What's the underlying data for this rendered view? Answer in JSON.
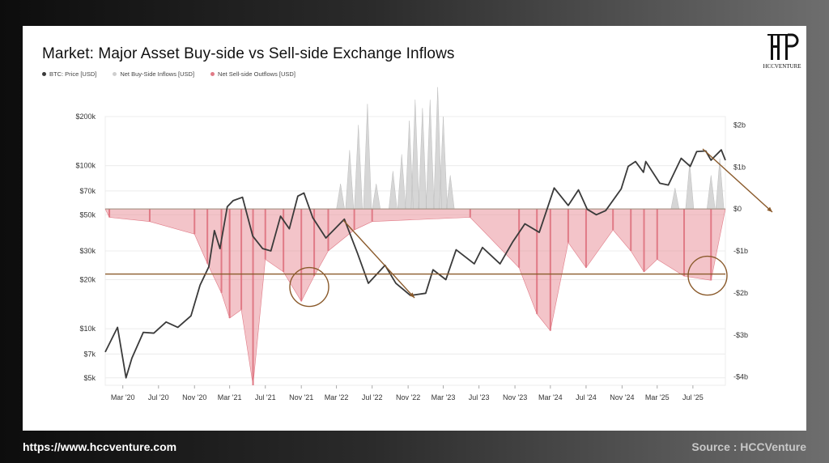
{
  "footer": {
    "url": "https://www.hccventure.com",
    "source": "Source : HCCVenture"
  },
  "logo": {
    "text": "HCCVENTURE"
  },
  "colors": {
    "price": "#3a3a3a",
    "inflow": "#cfcfcf",
    "outflow": "#e07a86",
    "outflow_fill": "#e9939d",
    "guide": "#8a5a2b"
  },
  "chart_data": {
    "type": "area",
    "title": "Market: Major Asset Buy-side vs Sell-side Exchange Inflows",
    "legend": [
      "BTC: Price [USD]",
      "Net Buy-Side Inflows [USD]",
      "Net Sell-side Outflows [USD]"
    ],
    "legend_position": "top-left",
    "x_ticks": [
      "Mar '20",
      "Jul '20",
      "Nov '20",
      "Mar '21",
      "Jul '21",
      "Nov '21",
      "Mar '22",
      "Jul '22",
      "Nov '22",
      "Mar '23",
      "Jul '23",
      "Nov '23",
      "Mar '24",
      "Jul '24",
      "Nov '24",
      "Mar '25",
      "Jul '25"
    ],
    "y_left": {
      "scale": "log",
      "range": [
        4500,
        200000
      ],
      "ticks": [
        {
          "v": 5000,
          "label": "$5k"
        },
        {
          "v": 7000,
          "label": "$7k"
        },
        {
          "v": 10000,
          "label": "$10k"
        },
        {
          "v": 20000,
          "label": "$20k"
        },
        {
          "v": 30000,
          "label": "$30k"
        },
        {
          "v": 50000,
          "label": "$50k"
        },
        {
          "v": 70000,
          "label": "$70k"
        },
        {
          "v": 100000,
          "label": "$100k"
        },
        {
          "v": 200000,
          "label": "$200k"
        }
      ]
    },
    "y_right": {
      "scale": "linear",
      "unit": "USD billions",
      "range": [
        -4.2,
        2.2
      ],
      "ticks": [
        {
          "v": 2,
          "label": "$2b"
        },
        {
          "v": 1,
          "label": "$1b"
        },
        {
          "v": 0,
          "label": "$0"
        },
        {
          "v": -1,
          "label": "-$1b"
        },
        {
          "v": -2,
          "label": "-$2b"
        },
        {
          "v": -3,
          "label": "-$3b"
        },
        {
          "v": -4,
          "label": "-$4b"
        }
      ]
    },
    "x_range": [
      "2020-01-01",
      "2025-10-20"
    ],
    "grid": true,
    "btc_price": [
      [
        "2020-01-01",
        7200
      ],
      [
        "2020-02-12",
        10200
      ],
      [
        "2020-03-12",
        5000
      ],
      [
        "2020-04-01",
        6600
      ],
      [
        "2020-05-10",
        9500
      ],
      [
        "2020-06-15",
        9400
      ],
      [
        "2020-07-27",
        11000
      ],
      [
        "2020-09-05",
        10200
      ],
      [
        "2020-10-20",
        12000
      ],
      [
        "2020-11-20",
        18500
      ],
      [
        "2020-12-20",
        24000
      ],
      [
        "2021-01-08",
        40000
      ],
      [
        "2021-01-27",
        31000
      ],
      [
        "2021-02-21",
        56000
      ],
      [
        "2021-03-13",
        61000
      ],
      [
        "2021-04-14",
        64000
      ],
      [
        "2021-05-19",
        37000
      ],
      [
        "2021-06-22",
        31000
      ],
      [
        "2021-07-20",
        30000
      ],
      [
        "2021-08-22",
        49000
      ],
      [
        "2021-09-21",
        41000
      ],
      [
        "2021-10-20",
        65000
      ],
      [
        "2021-11-10",
        68000
      ],
      [
        "2021-12-10",
        48000
      ],
      [
        "2022-01-24",
        36000
      ],
      [
        "2022-03-28",
        47000
      ],
      [
        "2022-05-12",
        29000
      ],
      [
        "2022-06-18",
        19000
      ],
      [
        "2022-08-14",
        24500
      ],
      [
        "2022-09-20",
        19000
      ],
      [
        "2022-11-09",
        16000
      ],
      [
        "2022-12-31",
        16500
      ],
      [
        "2023-01-25",
        23000
      ],
      [
        "2023-03-10",
        20000
      ],
      [
        "2023-04-14",
        30500
      ],
      [
        "2023-06-15",
        25000
      ],
      [
        "2023-07-13",
        31500
      ],
      [
        "2023-09-11",
        25000
      ],
      [
        "2023-10-24",
        34000
      ],
      [
        "2023-12-05",
        44000
      ],
      [
        "2024-01-23",
        39000
      ],
      [
        "2024-03-14",
        73000
      ],
      [
        "2024-05-01",
        57000
      ],
      [
        "2024-06-05",
        71000
      ],
      [
        "2024-07-05",
        54000
      ],
      [
        "2024-08-05",
        50000
      ],
      [
        "2024-09-06",
        53000
      ],
      [
        "2024-10-29",
        72000
      ],
      [
        "2024-11-22",
        99000
      ],
      [
        "2024-12-17",
        106000
      ],
      [
        "2025-01-13",
        91000
      ],
      [
        "2025-01-21",
        106000
      ],
      [
        "2025-03-10",
        78000
      ],
      [
        "2025-04-08",
        76000
      ],
      [
        "2025-05-22",
        111000
      ],
      [
        "2025-06-22",
        99000
      ],
      [
        "2025-07-14",
        122000
      ],
      [
        "2025-08-14",
        123000
      ],
      [
        "2025-09-01",
        108000
      ],
      [
        "2025-10-06",
        125000
      ],
      [
        "2025-10-20",
        108000
      ]
    ],
    "net_buy_side_inflows_usd_b": [
      [
        "2022-03-15",
        0.6
      ],
      [
        "2022-04-15",
        1.4
      ],
      [
        "2022-05-15",
        2.0
      ],
      [
        "2022-06-15",
        2.5
      ],
      [
        "2022-07-15",
        0.6
      ],
      [
        "2022-09-10",
        0.9
      ],
      [
        "2022-10-10",
        1.3
      ],
      [
        "2022-11-05",
        2.1
      ],
      [
        "2022-11-25",
        2.6
      ],
      [
        "2022-12-20",
        2.4
      ],
      [
        "2023-01-15",
        2.6
      ],
      [
        "2023-02-10",
        2.9
      ],
      [
        "2023-03-01",
        2.2
      ],
      [
        "2023-03-25",
        0.8
      ],
      [
        "2025-05-01",
        0.5
      ],
      [
        "2025-06-20",
        1.1
      ],
      [
        "2025-09-01",
        0.8
      ],
      [
        "2025-10-01",
        1.2
      ]
    ],
    "net_sell_side_outflows_usd_b": [
      [
        "2020-01-15",
        -0.2
      ],
      [
        "2020-06-01",
        -0.3
      ],
      [
        "2020-11-01",
        -0.6
      ],
      [
        "2020-12-15",
        -1.3
      ],
      [
        "2021-02-01",
        -2.0
      ],
      [
        "2021-03-01",
        -2.6
      ],
      [
        "2021-04-10",
        -2.4
      ],
      [
        "2021-05-20",
        -4.2
      ],
      [
        "2021-07-01",
        -1.2
      ],
      [
        "2021-09-01",
        -1.5
      ],
      [
        "2021-11-01",
        -2.2
      ],
      [
        "2021-12-15",
        -1.6
      ],
      [
        "2022-02-01",
        -1.0
      ],
      [
        "2022-05-01",
        -0.5
      ],
      [
        "2022-07-01",
        -0.3
      ],
      [
        "2023-06-01",
        -0.2
      ],
      [
        "2023-11-15",
        -1.4
      ],
      [
        "2024-01-15",
        -2.5
      ],
      [
        "2024-03-01",
        -2.9
      ],
      [
        "2024-05-01",
        -0.8
      ],
      [
        "2024-07-01",
        -1.4
      ],
      [
        "2024-10-01",
        -0.5
      ],
      [
        "2024-12-01",
        -1.0
      ],
      [
        "2025-01-15",
        -1.5
      ],
      [
        "2025-03-01",
        -1.2
      ],
      [
        "2025-06-01",
        -1.6
      ],
      [
        "2025-09-01",
        -1.7
      ]
    ]
  }
}
